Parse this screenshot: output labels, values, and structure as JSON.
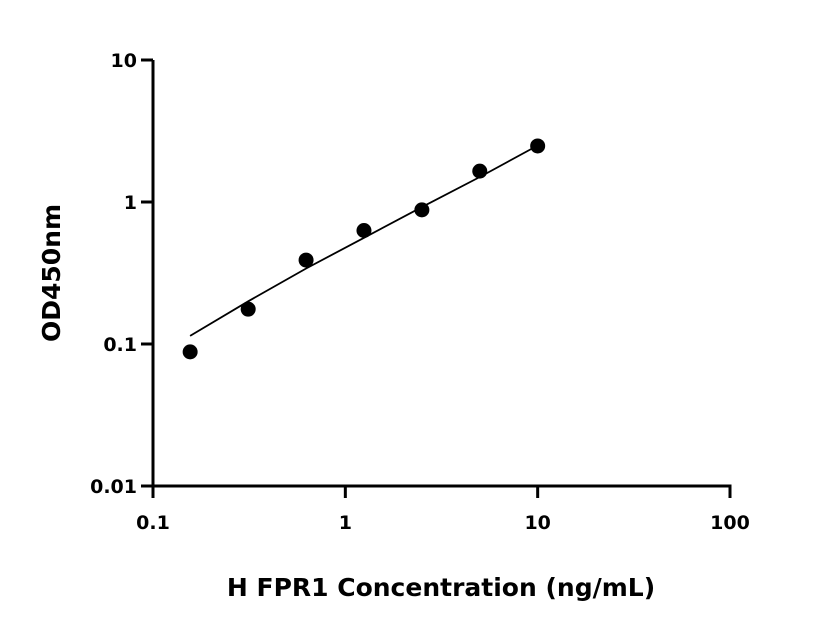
{
  "chart_data": {
    "type": "scatter",
    "title": "",
    "xlabel": "H FPR1 Concentration (ng/mL)",
    "ylabel": "OD450nm",
    "xscale": "log",
    "yscale": "log",
    "xlim": [
      0.1,
      100
    ],
    "ylim": [
      0.01,
      10
    ],
    "xticks": [
      "0.1",
      "1",
      "10",
      "100"
    ],
    "yticks": [
      "0.01",
      "0.1",
      "1",
      "10"
    ],
    "grid": false,
    "legend": "none",
    "series": [
      {
        "x": [
          0.156,
          0.3125,
          0.625,
          1.25,
          2.5,
          5,
          10
        ],
        "y": [
          0.088,
          0.176,
          0.39,
          0.63,
          0.88,
          1.65,
          2.48
        ],
        "color": "#000000",
        "marker": "circle"
      }
    ],
    "fit_line": {
      "x": [
        0.156,
        0.3125,
        0.625,
        1.25,
        2.5,
        5,
        10
      ],
      "y": [
        0.114,
        0.2,
        0.34,
        0.56,
        0.92,
        1.5,
        2.5
      ],
      "color": "#000000"
    }
  }
}
